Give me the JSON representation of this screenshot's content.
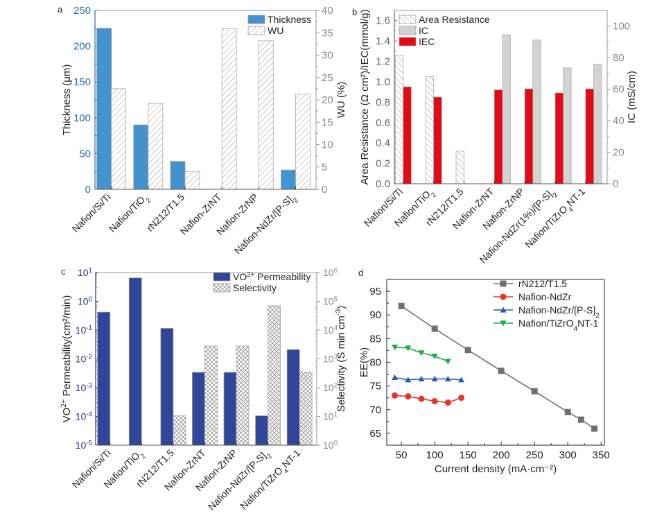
{
  "chart_data": [
    {
      "panel": "a",
      "type": "bar",
      "categories": [
        "Nafion/Si/Ti",
        "Nafion/TiO2",
        "rN212/T1.5",
        "Nafion-ZrNT",
        "Nafion-ZrNP",
        "Nafion-NdZr/[P-S]2"
      ],
      "category_labels": [
        {
          "main": "Nafion/Si/Ti",
          "sub": ""
        },
        {
          "main": "Nafion/TiO",
          "sub": "2"
        },
        {
          "main": "rN212/T1.5",
          "sub": ""
        },
        {
          "main": "Nafion-ZrNT",
          "sub": ""
        },
        {
          "main": "Nafion-ZrNP",
          "sub": ""
        },
        {
          "main": "Nafion-NdZr/[P-S]",
          "sub": "2"
        }
      ],
      "series": [
        {
          "name": "Thickness",
          "axis": "left",
          "style": "solid",
          "color": "#4393cf",
          "values": [
            225,
            90,
            39,
            null,
            null,
            27
          ]
        },
        {
          "name": "WU",
          "axis": "right",
          "style": "hatch-diagonal",
          "color": "#ffffff",
          "values": [
            22.5,
            19.2,
            4,
            35.9,
            33.2,
            21.3
          ]
        }
      ],
      "ylabel": "Thickness (μm)",
      "ylabel_right": "WU (%)",
      "ylim": [
        0,
        250
      ],
      "ylim_right": [
        0,
        40
      ],
      "yticks": [
        0,
        50,
        100,
        150,
        200,
        250
      ],
      "yticks_right": [
        0,
        5,
        10,
        15,
        20,
        25,
        30,
        35,
        40
      ],
      "left_axis_color": "#2b6cb0",
      "legend_position": "top-right"
    },
    {
      "panel": "b",
      "type": "bar",
      "categories": [
        "Nafion/Si/Ti",
        "Nafion/TiO2",
        "rN212/T1.5",
        "Nafion-ZrNT",
        "Nafion-ZrNP",
        "Nafion-NdZr(1%)/[P-S]2",
        "Nafion/TiZrO4NT-1"
      ],
      "category_labels": [
        {
          "main": "Nafion/Si/Ti",
          "sub": ""
        },
        {
          "main": "Nafion/TiO",
          "sub": "2"
        },
        {
          "main": "rN212/T1.5",
          "sub": ""
        },
        {
          "main": "Nafion-ZrNT",
          "sub": ""
        },
        {
          "main": "Nafion-ZrNP",
          "sub": ""
        },
        {
          "main": "Nafion-NdZr(1%)/[P-S]",
          "sub": "2"
        },
        {
          "main": "Nafion/TiZrO",
          "sub": "4",
          "tail": "NT-1"
        }
      ],
      "series": [
        {
          "name": "Area Resistance",
          "axis": "left",
          "style": "hatch-back",
          "color": "#ffffff",
          "values": [
            1.26,
            1.05,
            0.32,
            null,
            null,
            null,
            null
          ]
        },
        {
          "name": "IC",
          "axis": "right",
          "style": "solid",
          "color": "#d3d3d3",
          "values": [
            null,
            null,
            null,
            94.5,
            91.2,
            73.5,
            75.8
          ]
        },
        {
          "name": "IEC",
          "axis": "left",
          "style": "solid",
          "color": "#e50913",
          "values": [
            0.95,
            0.85,
            null,
            0.92,
            0.93,
            0.89,
            0.93
          ]
        }
      ],
      "ylabel": "Area Resistance (Ω cm²)/IEC(mmol/g)",
      "ylabel_right": "IC (mS/cm)",
      "ylim": [
        0,
        1.7
      ],
      "ylim_right": [
        0,
        110
      ],
      "yticks": [
        "0.0",
        "0.2",
        "0.4",
        "0.6",
        "0.8",
        "1.0",
        "1.2",
        "1.4",
        "1.6"
      ],
      "yticks_right": [
        0,
        20,
        40,
        60,
        80,
        100
      ],
      "legend_position": "top-left"
    },
    {
      "panel": "c",
      "type": "bar",
      "scale": "log",
      "categories": [
        "Nafion/Si/Ti",
        "Nafion/TiO2",
        "rN212/T1.5",
        "Nafion-ZrNT",
        "Nafion-ZrNP",
        "Nafion-NdZr/[P-S]2",
        "Nafion/TiZrO4NT-1"
      ],
      "category_labels": [
        {
          "main": "Nafion/Si/Ti",
          "sub": ""
        },
        {
          "main": "Nafion/TiO",
          "sub": "2"
        },
        {
          "main": "rN212/T1.5",
          "sub": ""
        },
        {
          "main": "Nafion-ZrNT",
          "sub": ""
        },
        {
          "main": "Nafion-ZrNP",
          "sub": ""
        },
        {
          "main": "Nafion-NdZr/[P-S]",
          "sub": "2"
        },
        {
          "main": "Nafion/TiZrO",
          "sub": "4",
          "tail": "NT-1"
        }
      ],
      "series": [
        {
          "name": "VO2+ Permeability",
          "axis": "left",
          "style": "solid",
          "color": "#2f4699",
          "values": [
            0.42,
            6.5,
            0.115,
            0.0034,
            0.0034,
            0.000105,
            0.021
          ]
        },
        {
          "name": "Selectivity",
          "axis": "right",
          "style": "hatch-cross",
          "color": "#ffffff",
          "values": [
            null,
            null,
            10.5,
            2800,
            2800,
            70000,
            350
          ]
        }
      ],
      "legend_labels": [
        {
          "main": "VO",
          "sup": "2+",
          "tail": " Permeability"
        },
        {
          "main": "Selectivity",
          "sup": "",
          "tail": ""
        }
      ],
      "ylabel": "VO2+ Permeability(cm2/min)",
      "ylabel_right": "Selectivity (S min cm-3)",
      "ylim": [
        1e-05,
        10
      ],
      "ylim_right": [
        1,
        1000000
      ],
      "yticks": [
        {
          "base": "10",
          "exp": "-5"
        },
        {
          "base": "10",
          "exp": "-4"
        },
        {
          "base": "10",
          "exp": "-3"
        },
        {
          "base": "10",
          "exp": "-2"
        },
        {
          "base": "10",
          "exp": "-1"
        },
        {
          "base": "10",
          "exp": "0"
        },
        {
          "base": "10",
          "exp": "1"
        }
      ],
      "yticks_right": [
        {
          "base": "10",
          "exp": "0"
        },
        {
          "base": "10",
          "exp": "1"
        },
        {
          "base": "10",
          "exp": "2"
        },
        {
          "base": "10",
          "exp": "3"
        },
        {
          "base": "10",
          "exp": "4"
        },
        {
          "base": "10",
          "exp": "5"
        },
        {
          "base": "10",
          "exp": "6"
        }
      ],
      "left_axis_color": "#2a2f8f",
      "legend_position": "top-right"
    },
    {
      "panel": "d",
      "type": "line",
      "series": [
        {
          "name": "rN212/T1.5",
          "color": "#707070",
          "marker": "square",
          "x": [
            50,
            100,
            150,
            200,
            250,
            300,
            320,
            340
          ],
          "y": [
            91.9,
            87.1,
            82.6,
            78.2,
            73.9,
            69.5,
            67.9,
            66.0
          ]
        },
        {
          "name": "Nafion-NdZr",
          "color": "#e8342a",
          "marker": "circle",
          "x": [
            40,
            60,
            80,
            100,
            120,
            140
          ],
          "y": [
            73.0,
            72.8,
            72.3,
            71.8,
            71.5,
            72.5
          ]
        },
        {
          "name": "Nafion-NdZr/[P-S]2",
          "color": "#2a5db0",
          "marker": "triangle-up",
          "x": [
            40,
            60,
            80,
            100,
            120,
            140
          ],
          "y": [
            76.8,
            76.3,
            76.5,
            76.5,
            76.5,
            76.3
          ]
        },
        {
          "name": "Nafion/TiZrO4NT-1",
          "color": "#20a84a",
          "marker": "triangle-down",
          "x": [
            40,
            60,
            80,
            100,
            120
          ],
          "y": [
            83.2,
            83.0,
            82.0,
            81.3,
            80.2
          ]
        }
      ],
      "legend_labels": [
        {
          "main": "rN212/T1.5",
          "sub": "",
          "tail": ""
        },
        {
          "main": "Nafion-NdZr",
          "sub": "",
          "tail": ""
        },
        {
          "main": "Nafion-NdZr/[P-S]",
          "sub": "2",
          "tail": ""
        },
        {
          "main": "Nafion/TiZrO",
          "sub": "4",
          "tail": "NT-1"
        }
      ],
      "xlabel": "Current density (mA·cm⁻²)",
      "ylabel": "EE(%)",
      "xlim": [
        28,
        355
      ],
      "ylim": [
        62.5,
        97.5
      ],
      "xticks": [
        50,
        100,
        150,
        200,
        250,
        300,
        350
      ],
      "yticks": [
        65,
        70,
        75,
        80,
        85,
        90,
        95
      ],
      "legend_position": "top-right"
    }
  ]
}
